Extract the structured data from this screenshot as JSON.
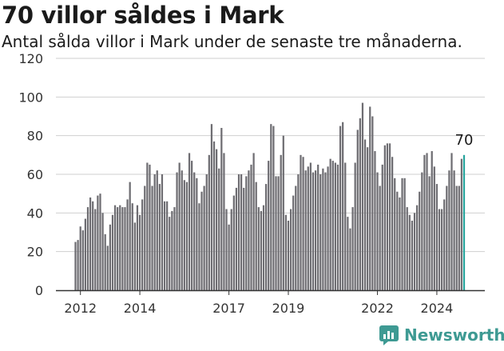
{
  "header": {
    "title": "70 villor såldes i Mark",
    "subtitle": "Antal sålda villor i Mark under de senaste tre månaderna."
  },
  "brand": {
    "name": "Newsworthy",
    "icon": "newsworthy-logo-icon",
    "color": "#3e9a93"
  },
  "colors": {
    "bar": "#6e6d72",
    "highlight": "#27a59d",
    "grid": "#cfcfcf",
    "axis": "#333333"
  },
  "chart_data": {
    "type": "bar",
    "xlabel": "",
    "ylabel": "",
    "ylim": [
      0,
      120
    ],
    "yticks": [
      0,
      20,
      40,
      60,
      80,
      100,
      120
    ],
    "xticks": [
      "2012",
      "2014",
      "2017",
      "2019",
      "2022",
      "2024"
    ],
    "grid": true,
    "highlight_label": "70",
    "x_start": "2011-11",
    "values": [
      25,
      26,
      33,
      31,
      37,
      43,
      48,
      46,
      42,
      49,
      50,
      40,
      29,
      23,
      34,
      39,
      44,
      43,
      44,
      43,
      43,
      47,
      56,
      45,
      35,
      44,
      39,
      47,
      54,
      66,
      65,
      54,
      60,
      62,
      55,
      60,
      46,
      46,
      38,
      41,
      43,
      61,
      66,
      62,
      57,
      56,
      71,
      67,
      61,
      58,
      45,
      51,
      54,
      60,
      70,
      86,
      77,
      73,
      63,
      84,
      71,
      42,
      34,
      42,
      49,
      53,
      60,
      60,
      53,
      59,
      62,
      65,
      71,
      56,
      43,
      41,
      44,
      55,
      67,
      86,
      85,
      59,
      59,
      70,
      80,
      39,
      36,
      42,
      49,
      54,
      60,
      70,
      69,
      62,
      64,
      66,
      61,
      62,
      65,
      60,
      63,
      61,
      64,
      68,
      67,
      66,
      65,
      85,
      87,
      66,
      38,
      32,
      43,
      66,
      83,
      89,
      97,
      78,
      74,
      95,
      90,
      72,
      61,
      54,
      65,
      75,
      76,
      76,
      69,
      58,
      51,
      48,
      58,
      58,
      43,
      39,
      36,
      40,
      44,
      51,
      61,
      70,
      71,
      59,
      72,
      64,
      55,
      42,
      42,
      47,
      54,
      62,
      71,
      62,
      54,
      54,
      68,
      70
    ]
  }
}
